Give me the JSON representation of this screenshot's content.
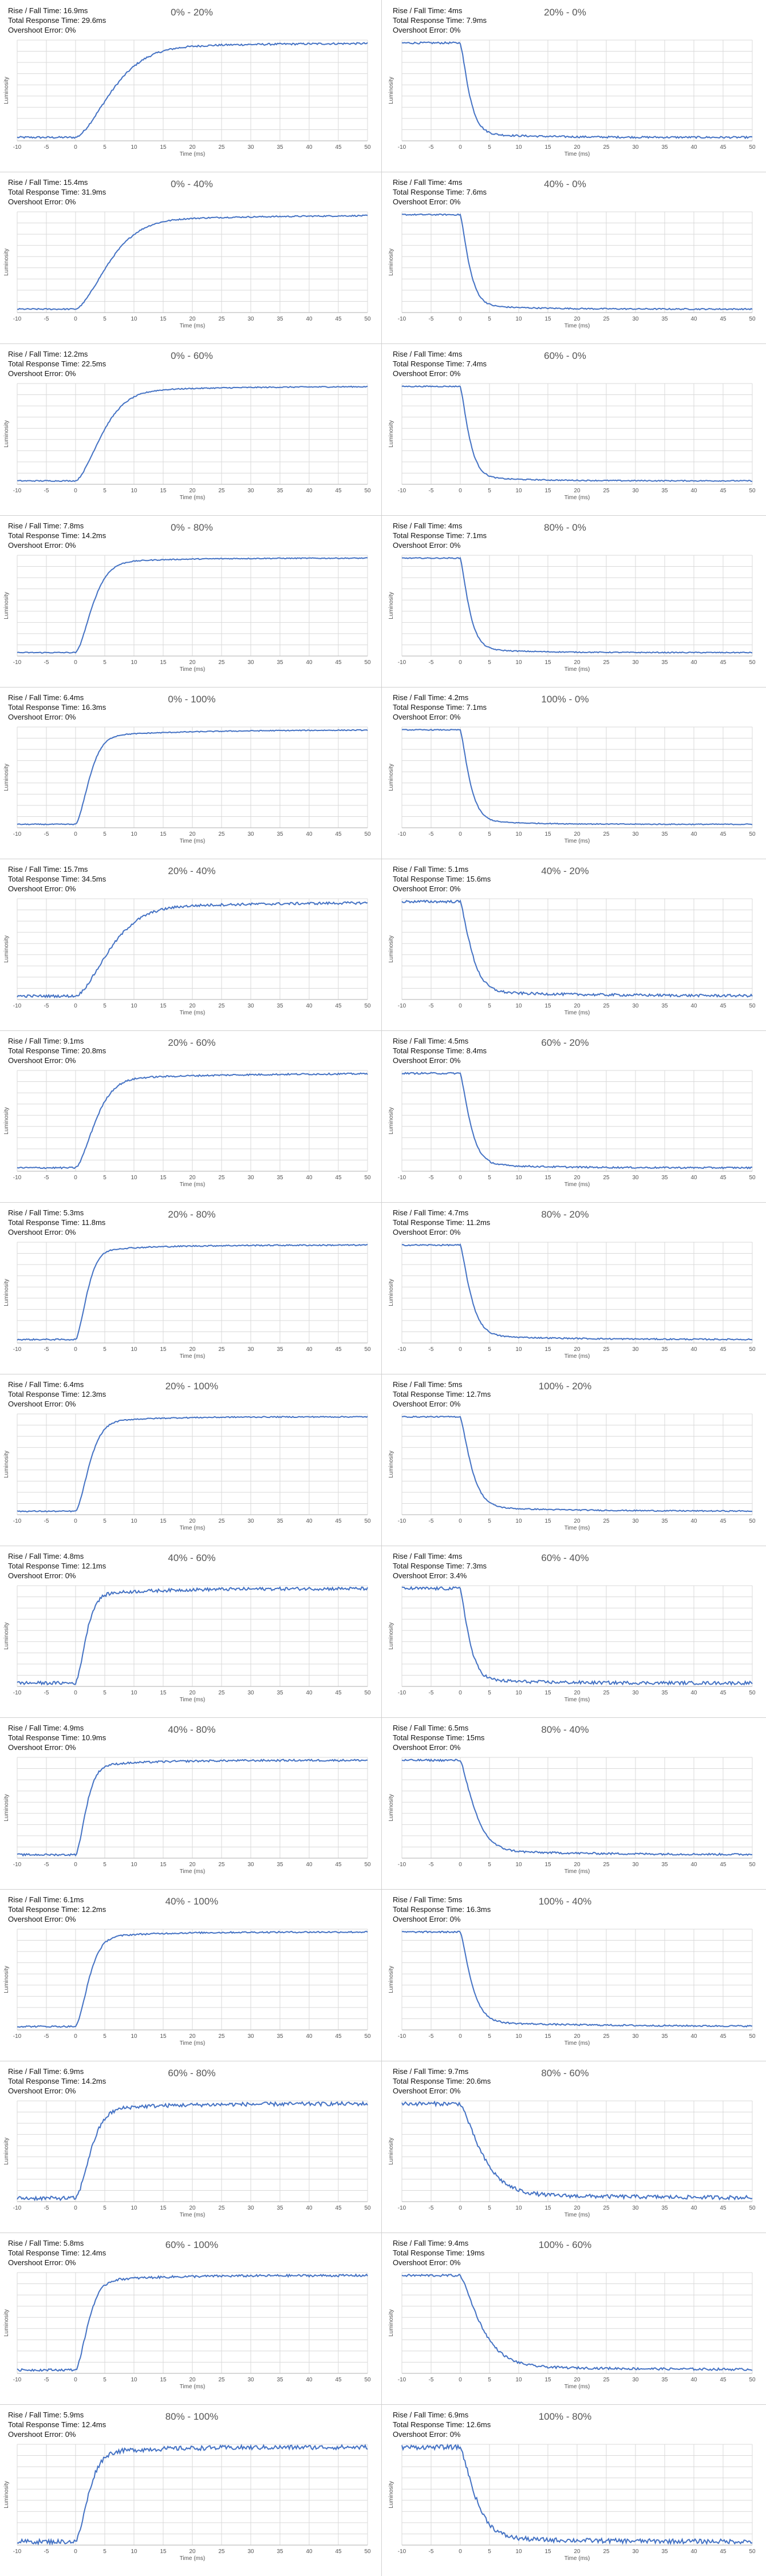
{
  "axis": {
    "xlabel": "Time (ms)",
    "ylabel": "Luminosity",
    "xticks": [
      -10,
      -5,
      0,
      5,
      10,
      15,
      20,
      25,
      30,
      35,
      40,
      45,
      50
    ],
    "xlim": [
      -10,
      50
    ]
  },
  "labels": {
    "rise_fall": "Rise / Fall Time: ",
    "total": "Total Response Time: ",
    "overshoot": "Overshoot Error: "
  },
  "colors": {
    "line": "#4472c4",
    "grid": "#d9d9d9",
    "axis": "#bfbfbf"
  },
  "chart_data": [
    {
      "type": "line",
      "title": "0% - 20%",
      "rise_fall": "16.9ms",
      "total": "29.6ms",
      "overshoot": "0%",
      "from": 0,
      "to": 20
    },
    {
      "type": "line",
      "title": "20% - 0%",
      "rise_fall": "4ms",
      "total": "7.9ms",
      "overshoot": "0%",
      "from": 20,
      "to": 0
    },
    {
      "type": "line",
      "title": "0% - 40%",
      "rise_fall": "15.4ms",
      "total": "31.9ms",
      "overshoot": "0%",
      "from": 0,
      "to": 40
    },
    {
      "type": "line",
      "title": "40% - 0%",
      "rise_fall": "4ms",
      "total": "7.6ms",
      "overshoot": "0%",
      "from": 40,
      "to": 0
    },
    {
      "type": "line",
      "title": "0% - 60%",
      "rise_fall": "12.2ms",
      "total": "22.5ms",
      "overshoot": "0%",
      "from": 0,
      "to": 60
    },
    {
      "type": "line",
      "title": "60% - 0%",
      "rise_fall": "4ms",
      "total": "7.4ms",
      "overshoot": "0%",
      "from": 60,
      "to": 0
    },
    {
      "type": "line",
      "title": "0% - 80%",
      "rise_fall": "7.8ms",
      "total": "14.2ms",
      "overshoot": "0%",
      "from": 0,
      "to": 80
    },
    {
      "type": "line",
      "title": "80% - 0%",
      "rise_fall": "4ms",
      "total": "7.1ms",
      "overshoot": "0%",
      "from": 80,
      "to": 0
    },
    {
      "type": "line",
      "title": "0% - 100%",
      "rise_fall": "6.4ms",
      "total": "16.3ms",
      "overshoot": "0%",
      "from": 0,
      "to": 100
    },
    {
      "type": "line",
      "title": "100% - 0%",
      "rise_fall": "4.2ms",
      "total": "7.1ms",
      "overshoot": "0%",
      "from": 100,
      "to": 0
    },
    {
      "type": "line",
      "title": "20% - 40%",
      "rise_fall": "15.7ms",
      "total": "34.5ms",
      "overshoot": "0%",
      "from": 20,
      "to": 40
    },
    {
      "type": "line",
      "title": "40% - 20%",
      "rise_fall": "5.1ms",
      "total": "15.6ms",
      "overshoot": "0%",
      "from": 40,
      "to": 20
    },
    {
      "type": "line",
      "title": "20% - 60%",
      "rise_fall": "9.1ms",
      "total": "20.8ms",
      "overshoot": "0%",
      "from": 20,
      "to": 60
    },
    {
      "type": "line",
      "title": "60% - 20%",
      "rise_fall": "4.5ms",
      "total": "8.4ms",
      "overshoot": "0%",
      "from": 60,
      "to": 20
    },
    {
      "type": "line",
      "title": "20% - 80%",
      "rise_fall": "5.3ms",
      "total": "11.8ms",
      "overshoot": "0%",
      "from": 20,
      "to": 80
    },
    {
      "type": "line",
      "title": "80% - 20%",
      "rise_fall": "4.7ms",
      "total": "11.2ms",
      "overshoot": "0%",
      "from": 80,
      "to": 20
    },
    {
      "type": "line",
      "title": "20% - 100%",
      "rise_fall": "6.4ms",
      "total": "12.3ms",
      "overshoot": "0%",
      "from": 20,
      "to": 100
    },
    {
      "type": "line",
      "title": "100% - 20%",
      "rise_fall": "5ms",
      "total": "12.7ms",
      "overshoot": "0%",
      "from": 100,
      "to": 20
    },
    {
      "type": "line",
      "title": "40% - 60%",
      "rise_fall": "4.8ms",
      "total": "12.1ms",
      "overshoot": "0%",
      "from": 40,
      "to": 60
    },
    {
      "type": "line",
      "title": "60% - 40%",
      "rise_fall": "4ms",
      "total": "7.3ms",
      "overshoot": "3.4%",
      "from": 60,
      "to": 40
    },
    {
      "type": "line",
      "title": "40% - 80%",
      "rise_fall": "4.9ms",
      "total": "10.9ms",
      "overshoot": "0%",
      "from": 40,
      "to": 80
    },
    {
      "type": "line",
      "title": "80% - 40%",
      "rise_fall": "6.5ms",
      "total": "15ms",
      "overshoot": "0%",
      "from": 80,
      "to": 40
    },
    {
      "type": "line",
      "title": "40% - 100%",
      "rise_fall": "6.1ms",
      "total": "12.2ms",
      "overshoot": "0%",
      "from": 40,
      "to": 100
    },
    {
      "type": "line",
      "title": "100% - 40%",
      "rise_fall": "5ms",
      "total": "16.3ms",
      "overshoot": "0%",
      "from": 100,
      "to": 40
    },
    {
      "type": "line",
      "title": "60% - 80%",
      "rise_fall": "6.9ms",
      "total": "14.2ms",
      "overshoot": "0%",
      "from": 60,
      "to": 80
    },
    {
      "type": "line",
      "title": "80% - 60%",
      "rise_fall": "9.7ms",
      "total": "20.6ms",
      "overshoot": "0%",
      "from": 80,
      "to": 60
    },
    {
      "type": "line",
      "title": "60% - 100%",
      "rise_fall": "5.8ms",
      "total": "12.4ms",
      "overshoot": "0%",
      "from": 60,
      "to": 100
    },
    {
      "type": "line",
      "title": "100% - 60%",
      "rise_fall": "9.4ms",
      "total": "19ms",
      "overshoot": "0%",
      "from": 100,
      "to": 60
    },
    {
      "type": "line",
      "title": "80% - 100%",
      "rise_fall": "5.9ms",
      "total": "12.4ms",
      "overshoot": "0%",
      "from": 80,
      "to": 100
    },
    {
      "type": "line",
      "title": "100% - 80%",
      "rise_fall": "6.9ms",
      "total": "12.6ms",
      "overshoot": "0%",
      "from": 100,
      "to": 80
    }
  ]
}
